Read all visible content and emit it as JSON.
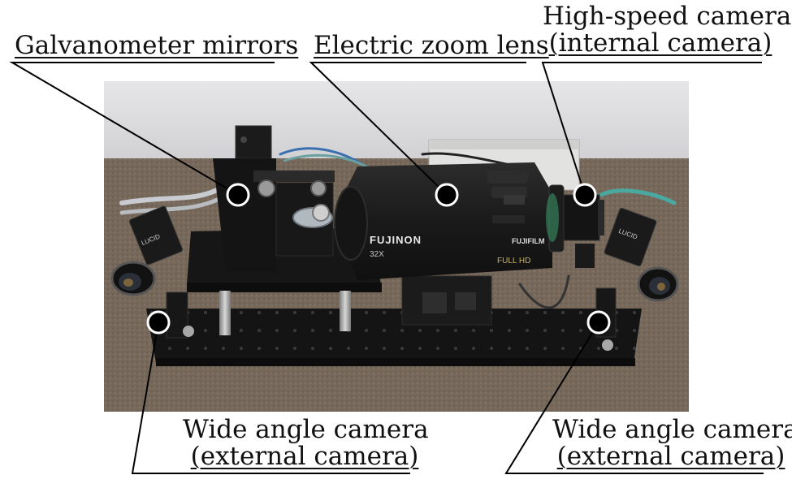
{
  "labels": {
    "galvanometer": "Galvanometer mirrors",
    "zoom_lens": "Electric zoom lens",
    "high_speed_line1": "High-speed camera",
    "high_speed_line2": "(internal camera)",
    "wide_left_line1": "Wide angle camera",
    "wide_left_line2": "(external camera)",
    "wide_right_line1": "Wide angle camera",
    "wide_right_line2": "(external camera)"
  },
  "lens_brand": "FUJINON",
  "lens_brand2": "FUJIFILM",
  "lens_spec": "32X",
  "lens_badge": "FULL HD",
  "camera_brand_left": "LUCID",
  "camera_brand_right": "LUCID",
  "colors": {
    "table_carpet": "#7a6a5a",
    "breadboard": "#151515",
    "lens_body": "#1c1c1c",
    "lens_accent": "#c8b36a",
    "background_wall": "#d9d9dc",
    "marker_fill": "#000000",
    "marker_stroke": "#ffffff",
    "leader_line": "#000000"
  }
}
